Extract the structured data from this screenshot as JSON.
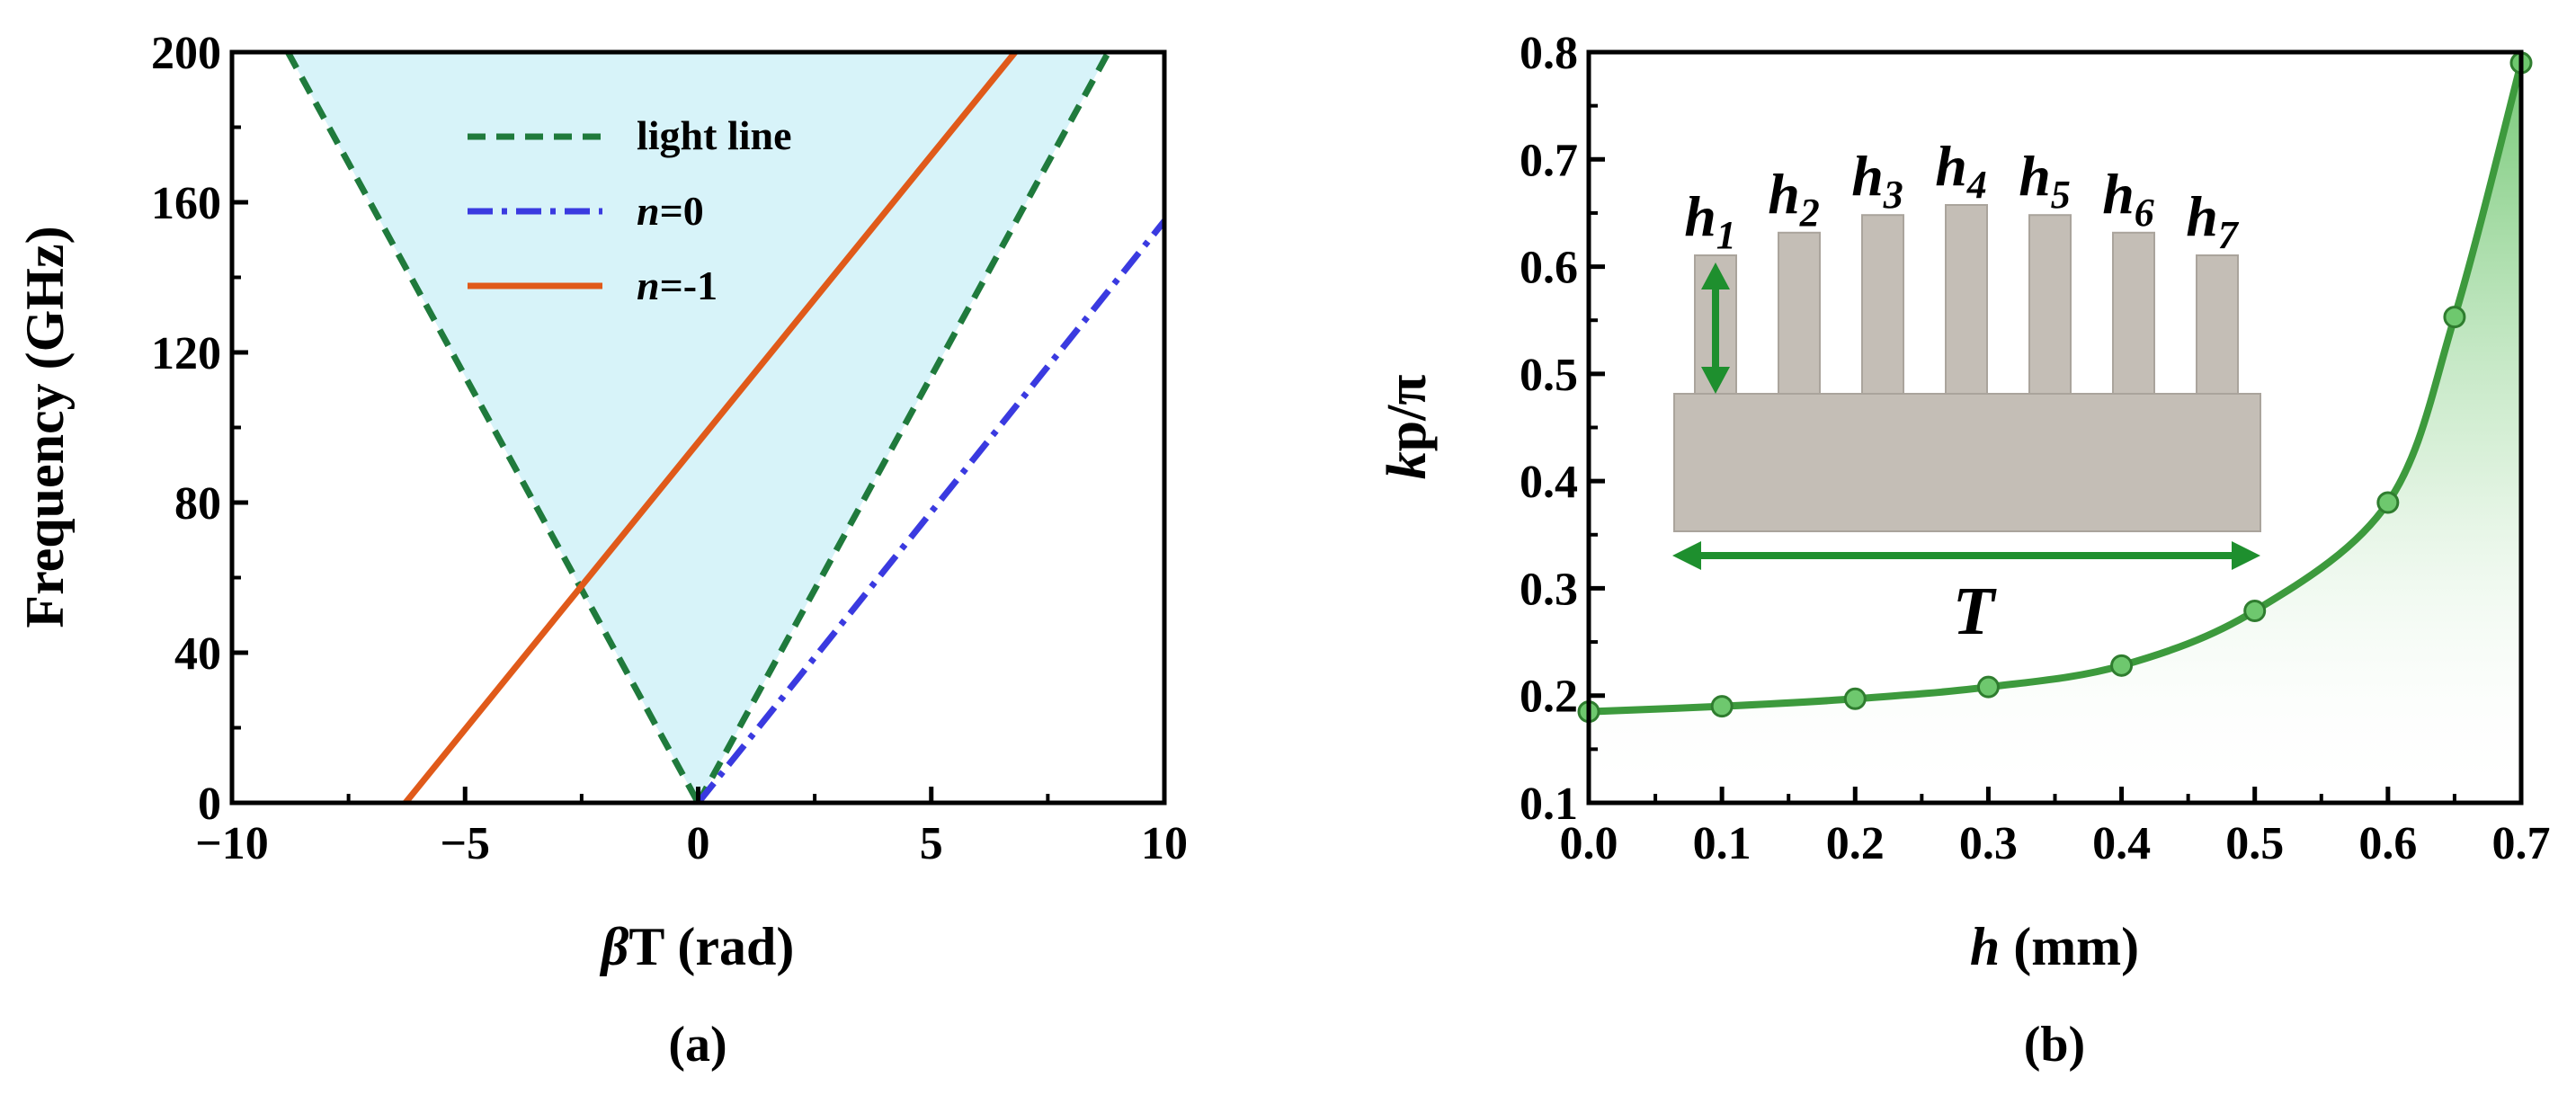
{
  "figure": {
    "colors": {
      "light_line": "#1f7a3c",
      "n0": "#3a3ae0",
      "n_minus1": "#e05a1a",
      "fill_a": "#d7f3f9",
      "curve_b": "#3d9a3d",
      "grating": "#c4beb6",
      "arrow": "#1e8f2e"
    }
  },
  "chart_data": [
    {
      "type": "line",
      "panel_label": "(a)",
      "xlabel_symbol": "β",
      "xlabel_rest": "T (rad)",
      "ylabel": "Frequency (GHz)",
      "xlim": [
        -10,
        10
      ],
      "ylim": [
        0,
        200
      ],
      "xticks": [
        -10,
        -5,
        0,
        5,
        10
      ],
      "xtick_labels": [
        "−10",
        "−5",
        "0",
        "5",
        "10"
      ],
      "yticks": [
        0,
        40,
        80,
        120,
        160,
        200
      ],
      "ytick_labels": [
        "0",
        "40",
        "80",
        "120",
        "160",
        "200"
      ],
      "shaded_region": "light cone between light lines",
      "legend": [
        {
          "italic": "",
          "text": "light line"
        },
        {
          "italic": "n",
          "text": "=0"
        },
        {
          "italic": "n",
          "text": "=-1"
        }
      ],
      "series": [
        {
          "name": "light line (left)",
          "style": "dashed",
          "x": [
            -8.8,
            0
          ],
          "y": [
            200,
            0
          ]
        },
        {
          "name": "light line (right)",
          "style": "dashed",
          "x": [
            0,
            8.8
          ],
          "y": [
            0,
            200
          ]
        },
        {
          "name": "n=0",
          "style": "dashdot",
          "x": [
            0,
            10
          ],
          "y": [
            0,
            155
          ]
        },
        {
          "name": "n=-1",
          "style": "solid",
          "x": [
            -6.28,
            6.8
          ],
          "y": [
            0,
            200
          ]
        }
      ]
    },
    {
      "type": "line",
      "panel_label": "(b)",
      "xlabel_italic": "h",
      "xlabel_rest": " (mm)",
      "ylabel_italic": "k",
      "ylabel_rest": "p/π",
      "xlim": [
        0,
        0.7
      ],
      "ylim": [
        0.1,
        0.8
      ],
      "xticks": [
        0,
        0.1,
        0.2,
        0.3,
        0.4,
        0.5,
        0.6,
        0.7
      ],
      "xtick_labels": [
        "0.0",
        "0.1",
        "0.2",
        "0.3",
        "0.4",
        "0.5",
        "0.6",
        "0.7"
      ],
      "yticks": [
        0.1,
        0.2,
        0.3,
        0.4,
        0.5,
        0.6,
        0.7,
        0.8
      ],
      "ytick_labels": [
        "0.1",
        "0.2",
        "0.3",
        "0.4",
        "0.5",
        "0.6",
        "0.7",
        "0.8"
      ],
      "series": [
        {
          "name": "kp/π vs h",
          "x": [
            0.0,
            0.1,
            0.2,
            0.3,
            0.4,
            0.5,
            0.6,
            0.65,
            0.7
          ],
          "y": [
            0.185,
            0.19,
            0.197,
            0.208,
            0.228,
            0.279,
            0.38,
            0.553,
            0.79
          ]
        }
      ],
      "inset": {
        "label_main": "h",
        "bar_labels": [
          "1",
          "2",
          "3",
          "4",
          "5",
          "6",
          "7"
        ],
        "bar_relative_heights": [
          0.6,
          0.78,
          0.92,
          1.0,
          0.92,
          0.78,
          0.6
        ],
        "period_label": "T"
      }
    }
  ]
}
